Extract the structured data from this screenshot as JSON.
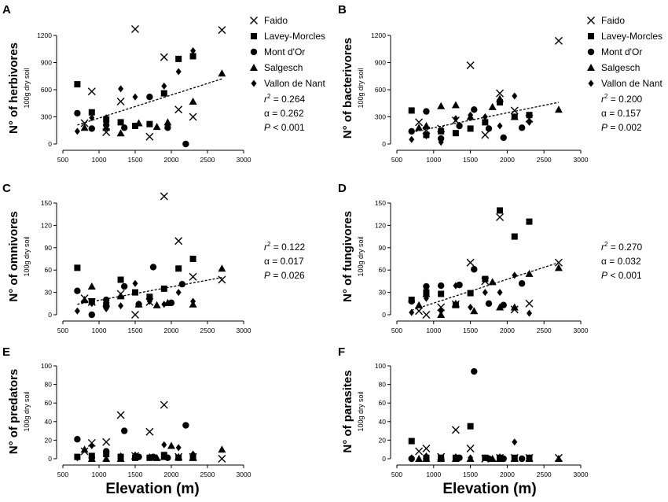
{
  "figure": {
    "x_axis_label": "Elevation (m)",
    "unit_label": "100g dry soil",
    "legend": [
      {
        "name": "Faido",
        "marker": "x-icon"
      },
      {
        "name": "Lavey-Morcles",
        "marker": "square-icon"
      },
      {
        "name": "Mont d'Or",
        "marker": "circle-icon"
      },
      {
        "name": "Salgesch",
        "marker": "triangle-icon"
      },
      {
        "name": "Vallon de Nant",
        "marker": "diamond-icon"
      }
    ]
  },
  "chart_data": [
    {
      "type": "scatter",
      "panel": "A",
      "ylabel": "N° of herbivores",
      "xlim": [
        500,
        3000
      ],
      "ylim": [
        0,
        1200
      ],
      "yticks": [
        0,
        300,
        600,
        900,
        1200
      ],
      "xticks": [
        500,
        1000,
        1500,
        2000,
        2500,
        3000
      ],
      "stats": {
        "r2": "= 0.264",
        "alpha": "= 0.262",
        "p": "< 0.001"
      },
      "trend": {
        "x": [
          700,
          2700
        ],
        "y": [
          210,
          720
        ]
      },
      "series": [
        {
          "name": "Faido",
          "x": [
            800,
            900,
            1100,
            1300,
            1500,
            1700,
            1900,
            2100,
            2300,
            2700
          ],
          "y": [
            230,
            580,
            130,
            470,
            1270,
            80,
            960,
            380,
            300,
            1260
          ]
        },
        {
          "name": "Lavey-Morcles",
          "x": [
            700,
            900,
            1100,
            1300,
            1500,
            1700,
            1900,
            2100,
            2300
          ],
          "y": [
            660,
            350,
            270,
            240,
            200,
            220,
            560,
            940,
            970
          ]
        },
        {
          "name": "Mont d'Or",
          "x": [
            700,
            900,
            1100,
            1350,
            1700,
            1950,
            2200
          ],
          "y": [
            340,
            170,
            210,
            180,
            520,
            180,
            0
          ]
        },
        {
          "name": "Salgesch",
          "x": [
            800,
            1100,
            1300,
            1550,
            1800,
            1950,
            2300,
            2700
          ],
          "y": [
            180,
            180,
            120,
            230,
            190,
            240,
            470,
            780
          ]
        },
        {
          "name": "Vallon de Nant",
          "x": [
            700,
            900,
            1100,
            1300,
            1500,
            1900,
            2100,
            2300
          ],
          "y": [
            140,
            290,
            290,
            610,
            520,
            640,
            800,
            1030
          ]
        }
      ]
    },
    {
      "type": "scatter",
      "panel": "B",
      "ylabel": "N° of bacterivores",
      "xlim": [
        500,
        3000
      ],
      "ylim": [
        0,
        1200
      ],
      "yticks": [
        0,
        300,
        600,
        900,
        1200
      ],
      "xticks": [
        500,
        1000,
        1500,
        2000,
        2500,
        3000
      ],
      "stats": {
        "r2": "= 0.200",
        "alpha": "= 0.157",
        "p": "= 0.002"
      },
      "trend": {
        "x": [
          700,
          2700
        ],
        "y": [
          130,
          460
        ]
      },
      "series": [
        {
          "name": "Faido",
          "x": [
            800,
            900,
            1100,
            1300,
            1500,
            1700,
            1900,
            2100,
            2300,
            2700
          ],
          "y": [
            240,
            150,
            170,
            260,
            870,
            100,
            560,
            370,
            280,
            1140
          ]
        },
        {
          "name": "Lavey-Morcles",
          "x": [
            700,
            900,
            1100,
            1300,
            1500,
            1700,
            1900,
            2100,
            2300
          ],
          "y": [
            370,
            100,
            140,
            120,
            170,
            240,
            460,
            300,
            320
          ]
        },
        {
          "name": "Mont d'Or",
          "x": [
            700,
            900,
            1100,
            1350,
            1550,
            1750,
            1950,
            2200
          ],
          "y": [
            140,
            360,
            60,
            200,
            380,
            170,
            70,
            180
          ]
        },
        {
          "name": "Salgesch",
          "x": [
            800,
            900,
            1100,
            1300,
            1500,
            1800,
            1900,
            2100,
            2700
          ],
          "y": [
            180,
            200,
            420,
            430,
            300,
            410,
            500,
            300,
            380
          ]
        },
        {
          "name": "Vallon de Nant",
          "x": [
            700,
            900,
            1100,
            1300,
            1500,
            1700,
            1900,
            2100,
            2300
          ],
          "y": [
            50,
            90,
            20,
            280,
            320,
            300,
            200,
            530,
            240
          ]
        }
      ]
    },
    {
      "type": "scatter",
      "panel": "C",
      "ylabel": "N° of omnivores",
      "xlim": [
        500,
        3000
      ],
      "ylim": [
        0,
        150
      ],
      "yticks": [
        0,
        30,
        60,
        90,
        120,
        150
      ],
      "xticks": [
        500,
        1000,
        1500,
        2000,
        2500,
        3000
      ],
      "stats": {
        "r2": "= 0.122",
        "alpha": "= 0.017",
        "p": "= 0.026"
      },
      "trend": {
        "x": [
          700,
          2700
        ],
        "y": [
          14,
          50
        ]
      },
      "series": [
        {
          "name": "Faido",
          "x": [
            800,
            900,
            1300,
            1500,
            1700,
            1900,
            2100,
            2300,
            2700
          ],
          "y": [
            22,
            17,
            28,
            0,
            17,
            159,
            99,
            51,
            47
          ]
        },
        {
          "name": "Lavey-Morcles",
          "x": [
            700,
            900,
            1100,
            1300,
            1500,
            1700,
            1900,
            2100,
            2300
          ],
          "y": [
            63,
            18,
            13,
            47,
            30,
            24,
            35,
            62,
            75
          ]
        },
        {
          "name": "Mont d'Or",
          "x": [
            700,
            900,
            1100,
            1350,
            1550,
            1750,
            2000,
            2150
          ],
          "y": [
            32,
            0,
            20,
            38,
            14,
            64,
            16,
            41
          ]
        },
        {
          "name": "Salgesch",
          "x": [
            800,
            900,
            1100,
            1300,
            1550,
            1800,
            1950,
            2300,
            2700
          ],
          "y": [
            20,
            38,
            15,
            25,
            14,
            13,
            16,
            14,
            62
          ]
        },
        {
          "name": "Vallon de Nant",
          "x": [
            700,
            900,
            1100,
            1300,
            1500,
            1700,
            1900,
            2100,
            2300
          ],
          "y": [
            5,
            15,
            8,
            12,
            42,
            18,
            14,
            30,
            18
          ]
        }
      ]
    },
    {
      "type": "scatter",
      "panel": "D",
      "ylabel": "N° of fungivores",
      "xlim": [
        500,
        3000
      ],
      "ylim": [
        0,
        150
      ],
      "yticks": [
        0,
        30,
        60,
        90,
        120,
        150
      ],
      "xticks": [
        500,
        1000,
        1500,
        2000,
        2500,
        3000
      ],
      "stats": {
        "r2": "= 0.270",
        "alpha": "= 0.032",
        "p": "< 0.001"
      },
      "trend": {
        "x": [
          700,
          2700
        ],
        "y": [
          6,
          70
        ]
      },
      "series": [
        {
          "name": "Faido",
          "x": [
            800,
            900,
            1100,
            1300,
            1500,
            1700,
            1900,
            2100,
            2300,
            2700
          ],
          "y": [
            5,
            0,
            10,
            14,
            70,
            45,
            131,
            7,
            15,
            70
          ]
        },
        {
          "name": "Lavey-Morcles",
          "x": [
            700,
            900,
            1100,
            1300,
            1500,
            1700,
            1900,
            2100,
            2300
          ],
          "y": [
            20,
            30,
            28,
            13,
            29,
            48,
            140,
            105,
            125
          ]
        },
        {
          "name": "Mont d'Or",
          "x": [
            700,
            900,
            1100,
            1350,
            1550,
            1750,
            1950,
            2200
          ],
          "y": [
            18,
            38,
            39,
            40,
            61,
            15,
            13,
            42
          ]
        },
        {
          "name": "Salgesch",
          "x": [
            800,
            900,
            1100,
            1300,
            1550,
            1800,
            1900,
            2100,
            2300,
            2700
          ],
          "y": [
            13,
            28,
            0,
            15,
            5,
            44,
            10,
            10,
            55,
            63
          ]
        },
        {
          "name": "Vallon de Nant",
          "x": [
            700,
            900,
            1100,
            1300,
            1500,
            1700,
            1900,
            2100,
            2300
          ],
          "y": [
            3,
            22,
            5,
            39,
            10,
            30,
            30,
            53,
            2
          ]
        }
      ]
    },
    {
      "type": "scatter",
      "panel": "E",
      "ylabel": "N° of predators",
      "xlim": [
        500,
        3000
      ],
      "ylim": [
        0,
        100
      ],
      "yticks": [
        0,
        20,
        40,
        60,
        80,
        100
      ],
      "xticks": [
        500,
        1000,
        1500,
        2000,
        2500,
        3000
      ],
      "series": [
        {
          "name": "Faido",
          "x": [
            800,
            900,
            1100,
            1300,
            1500,
            1700,
            1900,
            2100,
            2300,
            2700
          ],
          "y": [
            8,
            17,
            18,
            47,
            3,
            29,
            58,
            2,
            2,
            0
          ]
        },
        {
          "name": "Lavey-Morcles",
          "x": [
            700,
            900,
            1100,
            1300,
            1500,
            1700,
            1900,
            2100,
            2300
          ],
          "y": [
            2,
            3,
            5,
            2,
            1,
            1,
            4,
            1,
            2
          ]
        },
        {
          "name": "Mont d'Or",
          "x": [
            700,
            900,
            1100,
            1350,
            1550,
            1750,
            1950,
            2200
          ],
          "y": [
            21,
            1,
            8,
            30,
            2,
            2,
            1,
            36
          ]
        },
        {
          "name": "Salgesch",
          "x": [
            800,
            900,
            1100,
            1300,
            1500,
            1800,
            1900,
            2000,
            2100,
            2300,
            2700
          ],
          "y": [
            10,
            0,
            0,
            0,
            3,
            1,
            2,
            14,
            2,
            1,
            10
          ]
        },
        {
          "name": "Vallon de Nant",
          "x": [
            700,
            900,
            1100,
            1300,
            1500,
            1700,
            1900,
            2100,
            2300
          ],
          "y": [
            1,
            14,
            6,
            3,
            4,
            2,
            15,
            12,
            5
          ]
        }
      ]
    },
    {
      "type": "scatter",
      "panel": "F",
      "ylabel": "N° of parasites",
      "xlim": [
        500,
        3000
      ],
      "ylim": [
        0,
        100
      ],
      "yticks": [
        0,
        20,
        40,
        60,
        80,
        100
      ],
      "xticks": [
        500,
        1000,
        1500,
        2000,
        2500,
        3000
      ],
      "series": [
        {
          "name": "Faido",
          "x": [
            800,
            900,
            1100,
            1300,
            1500,
            1700,
            1900,
            2100,
            2300,
            2700
          ],
          "y": [
            8,
            11,
            2,
            31,
            11,
            0,
            1,
            1,
            1,
            1
          ]
        },
        {
          "name": "Lavey-Morcles",
          "x": [
            700,
            900,
            1100,
            1300,
            1500,
            1700,
            1900,
            2100,
            2300
          ],
          "y": [
            19,
            1,
            1,
            1,
            35,
            1,
            1,
            1,
            1
          ]
        },
        {
          "name": "Mont d'Or",
          "x": [
            700,
            900,
            1100,
            1350,
            1550,
            1750,
            1950,
            2200
          ],
          "y": [
            0,
            0,
            0,
            1,
            94,
            0,
            0,
            0
          ]
        },
        {
          "name": "Salgesch",
          "x": [
            800,
            900,
            1100,
            1300,
            1500,
            1800,
            1900,
            2100,
            2300,
            2700
          ],
          "y": [
            0,
            0,
            0,
            0,
            0,
            0,
            0,
            0,
            0,
            0
          ]
        },
        {
          "name": "Vallon de Nant",
          "x": [
            700,
            900,
            1100,
            1300,
            1500,
            1700,
            1900,
            2100,
            2300
          ],
          "y": [
            1,
            3,
            1,
            2,
            1,
            1,
            2,
            18,
            1
          ]
        }
      ]
    }
  ]
}
